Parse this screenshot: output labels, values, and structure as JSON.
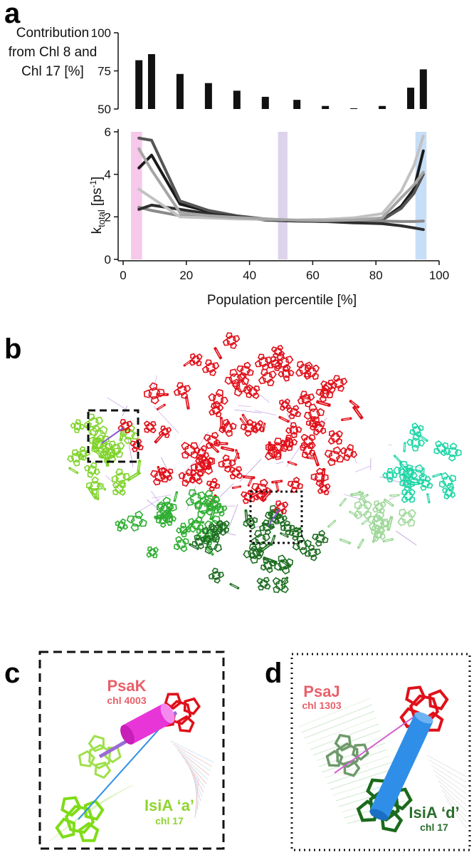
{
  "panels": {
    "a": "a",
    "b": "b",
    "c": "c",
    "d": "d"
  },
  "chart_data": [
    {
      "type": "bar",
      "ylabel_lines": [
        "Contribution",
        "from Chl 8 and",
        "Chl 17 [%]"
      ],
      "ylim": [
        50,
        100
      ],
      "yticks": [
        50,
        75,
        100
      ],
      "x": [
        5,
        9,
        18,
        27,
        36,
        45,
        55,
        64,
        73,
        82,
        91,
        95
      ],
      "values": [
        82,
        86,
        73,
        67,
        62,
        58,
        56,
        52,
        50.5,
        52,
        64,
        76
      ],
      "color": "#111111"
    },
    {
      "type": "line",
      "ylabel_main": "k",
      "ylabel_sub": "total",
      "ylabel_unit": " [ps",
      "ylabel_sup": "-1",
      "ylabel_close": "]",
      "xlabel": "Population percentile [%]",
      "xlim": [
        0,
        100
      ],
      "ylim": [
        0,
        6
      ],
      "xticks": [
        0,
        20,
        40,
        60,
        80,
        100
      ],
      "yticks": [
        0,
        2,
        4,
        6
      ],
      "highlights": [
        {
          "from": 2.5,
          "to": 6,
          "color": "#f6c8ea"
        },
        {
          "from": 49,
          "to": 52,
          "color": "#ddd3ec"
        },
        {
          "from": 92.5,
          "to": 96,
          "color": "#c7def7"
        }
      ],
      "series": [
        {
          "color": "#1a1a1a",
          "x": [
            5,
            9,
            18,
            27,
            36,
            45,
            55,
            64,
            73,
            82,
            88,
            92,
            95
          ],
          "y": [
            4.3,
            4.9,
            2.6,
            2.25,
            2.0,
            1.85,
            1.8,
            1.78,
            1.8,
            1.85,
            2.5,
            3.3,
            5.1
          ]
        },
        {
          "color": "#555555",
          "x": [
            5,
            9,
            18,
            27,
            36,
            45,
            55,
            64,
            73,
            82,
            88,
            92,
            95
          ],
          "y": [
            5.7,
            5.6,
            2.75,
            2.3,
            2.05,
            1.9,
            1.82,
            1.78,
            1.78,
            1.85,
            2.4,
            3.1,
            4.0
          ]
        },
        {
          "color": "#8a8a8a",
          "x": [
            5,
            9,
            18,
            27,
            36,
            45,
            55,
            64,
            73,
            82,
            88,
            92,
            95
          ],
          "y": [
            2.45,
            2.3,
            2.05,
            1.97,
            1.93,
            1.88,
            1.83,
            1.8,
            1.8,
            1.8,
            1.78,
            1.78,
            1.8
          ]
        },
        {
          "color": "#2e2e2e",
          "x": [
            5,
            9,
            18,
            27,
            36,
            45,
            55,
            64,
            73,
            82,
            88,
            92,
            95
          ],
          "y": [
            2.35,
            2.55,
            2.35,
            2.15,
            2.0,
            1.88,
            1.82,
            1.78,
            1.72,
            1.68,
            1.58,
            1.48,
            1.4
          ]
        },
        {
          "color": "#c2c2c2",
          "x": [
            5,
            9,
            18,
            27,
            36,
            45,
            55,
            64,
            73,
            82,
            88,
            92,
            95
          ],
          "y": [
            3.3,
            2.9,
            2.0,
            1.95,
            1.9,
            1.88,
            1.85,
            1.88,
            1.95,
            2.15,
            3.2,
            4.4,
            5.8
          ]
        },
        {
          "color": "#a5a5a5",
          "x": [
            5,
            9,
            18,
            27,
            36,
            45,
            55,
            64,
            73,
            82,
            88,
            92,
            95
          ],
          "y": [
            5.2,
            4.2,
            2.2,
            2.05,
            1.97,
            1.9,
            1.84,
            1.82,
            1.85,
            1.95,
            2.9,
            3.5,
            4.1
          ]
        }
      ]
    }
  ],
  "panel_c": {
    "psak": "PsaK",
    "psak_chl": "chl 4003",
    "isia": "IsiA ‘a’",
    "isia_chl": "chl 17"
  },
  "panel_d": {
    "psaj": "PsaJ",
    "psaj_chl": "chl 1303",
    "isia": "IsiA ‘d’",
    "isia_chl": "chl 17"
  },
  "colors": {
    "red": "#e0101a",
    "lime": "#7fd32a",
    "green": "#2fae32",
    "darkgreen": "#1f6e22",
    "palegreen": "#9fd89a",
    "teal": "#1fd6a6",
    "magenta": "#e83dd8",
    "blue": "#2f8fe8",
    "purple": "#a070d8",
    "label_red": "#e8606a",
    "label_lime": "#8fd42e",
    "label_green": "#2a6e2c"
  }
}
